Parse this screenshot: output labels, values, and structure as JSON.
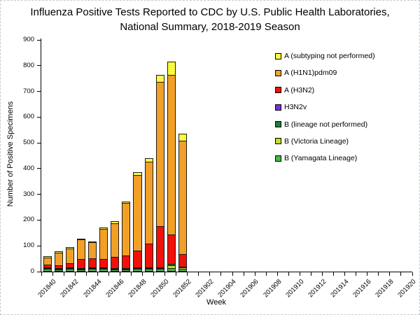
{
  "page": {
    "title_line1": "Influenza Positive Tests Reported to CDC by U.S. Public Health Laboratories,",
    "title_line2": "National Summary, 2018-2019 Season"
  },
  "chart_data": {
    "type": "bar",
    "subtype": "stacked-vertical",
    "title": "Influenza Positive Tests Reported to CDC by U.S. Public Health Laboratories, National Summary, 2018-2019 Season",
    "xlabel": "Week",
    "ylabel": "Number of Positive Specimens",
    "ylim": [
      0,
      900
    ],
    "ytick_step": 100,
    "grid": false,
    "legend_position": "inside-upper-right",
    "x_categories": [
      "201840",
      "201841",
      "201842",
      "201843",
      "201844",
      "201845",
      "201846",
      "201847",
      "201848",
      "201849",
      "201850",
      "201851",
      "201852",
      "201901",
      "201902",
      "201903",
      "201904",
      "201905",
      "201906",
      "201907",
      "201908",
      "201909",
      "201910",
      "201911",
      "201912",
      "201913",
      "201914",
      "201915",
      "201916",
      "201917",
      "201918",
      "201919",
      "201920"
    ],
    "x_label_every": 2,
    "weeks_with_data": 13,
    "series_bottom_to_top": [
      {
        "name": "B (Yamagata Lineage)",
        "color": "#47B74A",
        "values": [
          5,
          4,
          5,
          4,
          5,
          5,
          4,
          4,
          5,
          5,
          6,
          8,
          5
        ]
      },
      {
        "name": "B (Victoria Lineage)",
        "color": "#C8DC28",
        "values": [
          1,
          1,
          1,
          1,
          1,
          1,
          1,
          1,
          2,
          2,
          3,
          12,
          6
        ]
      },
      {
        "name": "B (lineage not performed)",
        "color": "#1E7E38",
        "values": [
          2,
          1,
          2,
          1,
          2,
          2,
          2,
          2,
          2,
          2,
          3,
          5,
          3
        ]
      },
      {
        "name": "H3N2v",
        "color": "#7D2FD9",
        "values": [
          0,
          0,
          0,
          0,
          0,
          0,
          0,
          0,
          0,
          0,
          0,
          0,
          0
        ]
      },
      {
        "name": "A (H3N2)",
        "color": "#F50F0A",
        "values": [
          15,
          11,
          20,
          38,
          38,
          34,
          44,
          50,
          68,
          95,
          160,
          115,
          50
        ]
      },
      {
        "name": "A (H1N1)pdm09",
        "color": "#F5A228",
        "values": [
          32,
          57,
          60,
          81,
          70,
          124,
          137,
          208,
          297,
          323,
          565,
          625,
          443
        ]
      },
      {
        "name": "A (subtyping not performed)",
        "color": "#FFFF42",
        "values": [
          6,
          4,
          7,
          3,
          2,
          6,
          7,
          7,
          11,
          13,
          28,
          50,
          28
        ]
      }
    ],
    "totals_by_week": [
      61,
      78,
      95,
      128,
      118,
      172,
      195,
      272,
      385,
      440,
      765,
      815,
      535
    ],
    "axis_color": "#000000"
  }
}
